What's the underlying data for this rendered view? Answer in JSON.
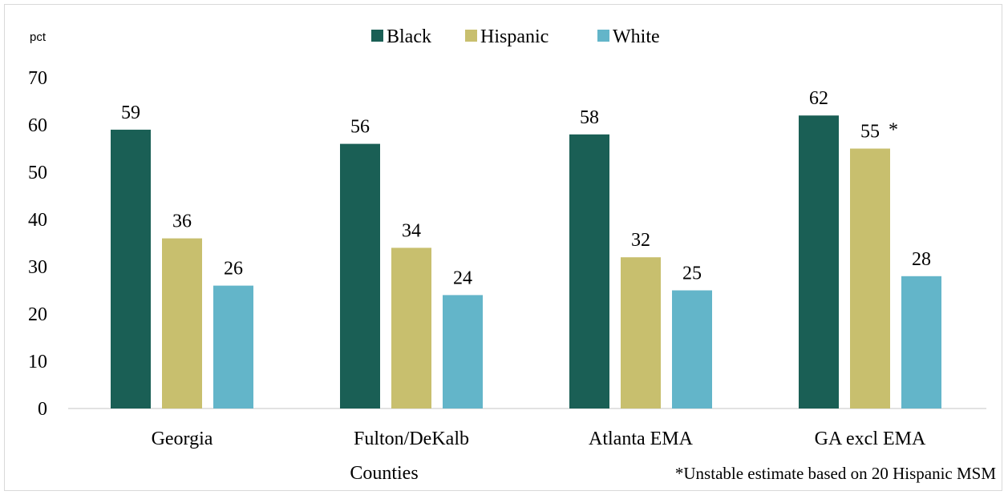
{
  "chart_data": {
    "type": "bar",
    "ylabel": "pct",
    "xlabel": "Counties",
    "ylim": [
      0,
      70
    ],
    "yticks": [
      0,
      10,
      20,
      30,
      40,
      50,
      60,
      70
    ],
    "grid": false,
    "legend_position": "top-center",
    "categories": [
      "Georgia",
      "Fulton/DeKalb",
      "Atlanta EMA",
      "GA excl EMA"
    ],
    "series": [
      {
        "name": "Black",
        "color": "#1a5f55",
        "values": [
          59,
          56,
          58,
          62
        ],
        "labels": [
          "59",
          "56",
          "58",
          "62"
        ]
      },
      {
        "name": "Hispanic",
        "color": "#c8bf6e",
        "values": [
          36,
          34,
          32,
          55
        ],
        "labels": [
          "36",
          "34",
          "32",
          "55"
        ]
      },
      {
        "name": "White",
        "color": "#63b5c9",
        "values": [
          26,
          24,
          25,
          28
        ],
        "labels": [
          "26",
          "24",
          "25",
          "28"
        ]
      }
    ],
    "annotation_marker": "*",
    "annotation_marker_target": {
      "series": 1,
      "category": 3
    },
    "footnote": "*Unstable estimate based on 20 Hispanic MSM"
  }
}
